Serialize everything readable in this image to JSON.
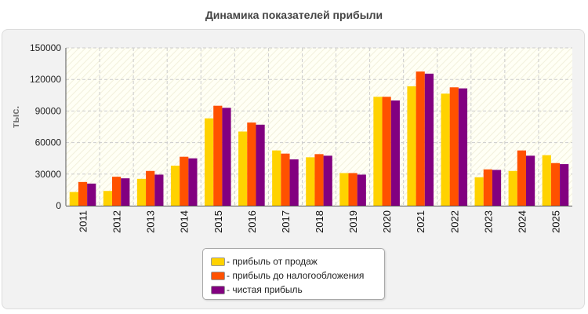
{
  "title": "Динамика показателей прибыли",
  "chart_data": {
    "type": "bar",
    "title": "Динамика показателей прибыли",
    "xlabel": "",
    "ylabel": "тыс.",
    "ylim": [
      0,
      150000
    ],
    "yticks": [
      "0",
      "30000",
      "60000",
      "90000",
      "120000",
      "150000"
    ],
    "grid": true,
    "legend_position": "bottom-center",
    "categories": [
      "2011",
      "2012",
      "2013",
      "2014",
      "2015",
      "2016",
      "2017",
      "2018",
      "2019",
      "2020",
      "2021",
      "2022",
      "2023",
      "2024",
      "2025"
    ],
    "series": [
      {
        "name": "- прибыль от продаж",
        "color": "#ffd200",
        "values": [
          13000,
          14000,
          25500,
          38000,
          83000,
          70500,
          52500,
          46000,
          31000,
          103500,
          113500,
          106500,
          27000,
          33000,
          48000
        ]
      },
      {
        "name": "- прибыль до налогообложения",
        "color": "#ff5100",
        "values": [
          22500,
          27500,
          33000,
          46500,
          95000,
          79000,
          49500,
          49000,
          31000,
          103500,
          127500,
          112500,
          34500,
          52500,
          40500
        ]
      },
      {
        "name": "- чистая прибыль",
        "color": "#820080",
        "values": [
          21000,
          26000,
          29500,
          45000,
          93000,
          77000,
          44000,
          47500,
          29500,
          100000,
          125500,
          111500,
          34000,
          47500,
          39500
        ]
      }
    ]
  }
}
